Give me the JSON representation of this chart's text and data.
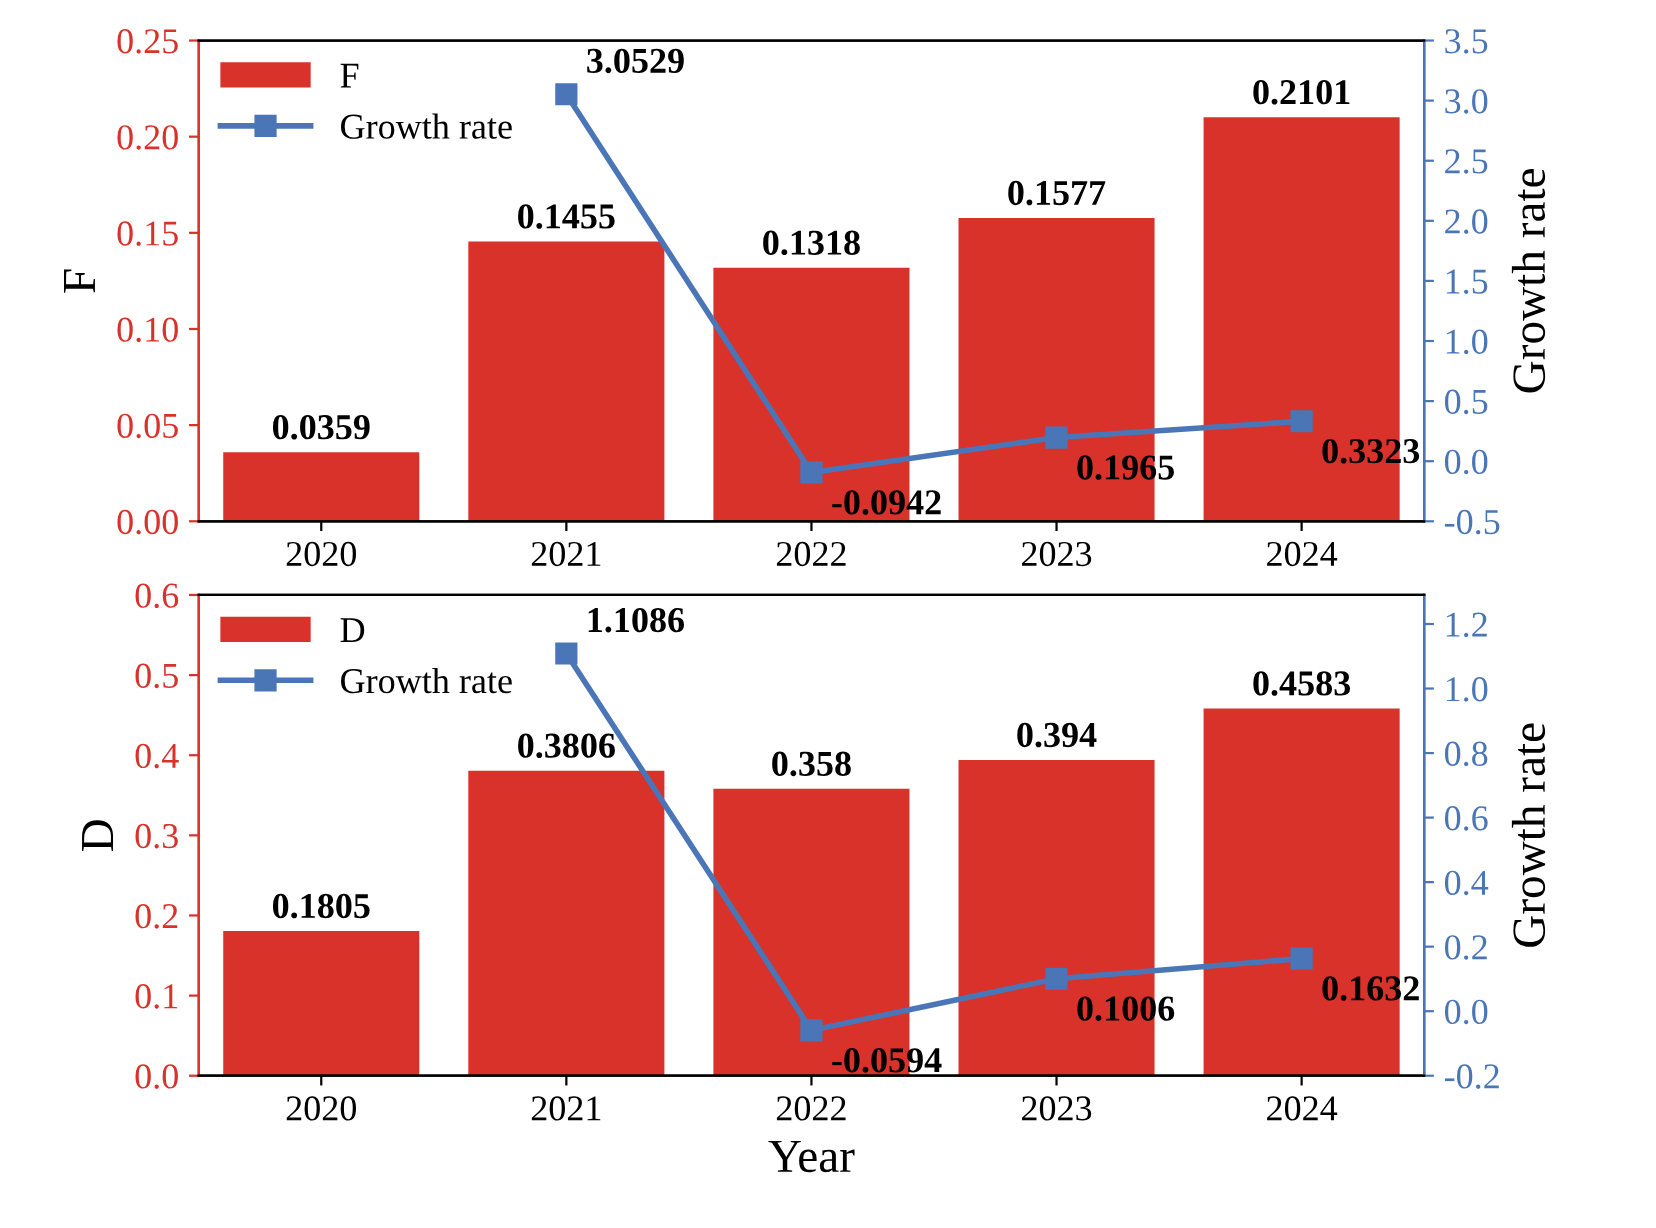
{
  "chart_data": [
    {
      "type": "bar",
      "ylabel": "F",
      "y2label": "Growth rate",
      "categories": [
        "2020",
        "2021",
        "2022",
        "2023",
        "2024"
      ],
      "series": [
        {
          "name": "F",
          "color": "#d8322a",
          "values": [
            0.0359,
            0.1455,
            0.1318,
            0.1577,
            0.2101
          ]
        },
        {
          "name": "Growth rate",
          "type": "line",
          "axis": "y2",
          "color": "#4a76b8",
          "marker": "square",
          "values": [
            null,
            3.0529,
            -0.0942,
            0.1965,
            0.3323
          ]
        }
      ],
      "ylim": [
        0,
        0.25
      ],
      "yticks": [
        {
          "value": 0,
          "label": "0.00"
        },
        {
          "value": 0.05,
          "label": "0.05"
        },
        {
          "value": 0.1,
          "label": "0.10"
        },
        {
          "value": 0.15,
          "label": "0.15"
        },
        {
          "value": 0.2,
          "label": "0.20"
        },
        {
          "value": 0.25,
          "label": "0.25"
        }
      ],
      "y2lim": [
        -0.5,
        3.5
      ],
      "y2ticks": [
        {
          "value": -0.5,
          "label": "-0.5"
        },
        {
          "value": 0,
          "label": "0.0"
        },
        {
          "value": 0.5,
          "label": "0.5"
        },
        {
          "value": 1,
          "label": "1.0"
        },
        {
          "value": 1.5,
          "label": "1.5"
        },
        {
          "value": 2,
          "label": "2.0"
        },
        {
          "value": 2.5,
          "label": "2.5"
        },
        {
          "value": 3,
          "label": "3.0"
        },
        {
          "value": 3.5,
          "label": "3.5"
        }
      ],
      "data_labels": true,
      "legend": "top left",
      "grid": false
    },
    {
      "type": "bar",
      "ylabel": "D",
      "y2label": "Growth rate",
      "xlabel": "Year",
      "categories": [
        "2020",
        "2021",
        "2022",
        "2023",
        "2024"
      ],
      "series": [
        {
          "name": "D",
          "color": "#d8322a",
          "values": [
            0.1805,
            0.3806,
            0.358,
            0.394,
            0.4583
          ]
        },
        {
          "name": "Growth rate",
          "type": "line",
          "axis": "y2",
          "color": "#4a76b8",
          "marker": "square",
          "values": [
            null,
            1.1086,
            -0.0594,
            0.1006,
            0.1632
          ]
        }
      ],
      "ylim": [
        0,
        0.6
      ],
      "yticks": [
        {
          "value": 0,
          "label": "0.0"
        },
        {
          "value": 0.1,
          "label": "0.1"
        },
        {
          "value": 0.2,
          "label": "0.2"
        },
        {
          "value": 0.3,
          "label": "0.3"
        },
        {
          "value": 0.4,
          "label": "0.4"
        },
        {
          "value": 0.5,
          "label": "0.5"
        },
        {
          "value": 0.6,
          "label": "0.6"
        }
      ],
      "y2lim": [
        -0.2,
        1.29
      ],
      "y2ticks": [
        {
          "value": -0.2,
          "label": "-0.2"
        },
        {
          "value": 0,
          "label": "0.0"
        },
        {
          "value": 0.2,
          "label": "0.2"
        },
        {
          "value": 0.4,
          "label": "0.4"
        },
        {
          "value": 0.6,
          "label": "0.6"
        },
        {
          "value": 0.8,
          "label": "0.8"
        },
        {
          "value": 1,
          "label": "1.0"
        },
        {
          "value": 1.2,
          "label": "1.2"
        }
      ],
      "data_labels": true,
      "legend": "top left",
      "grid": false
    }
  ]
}
